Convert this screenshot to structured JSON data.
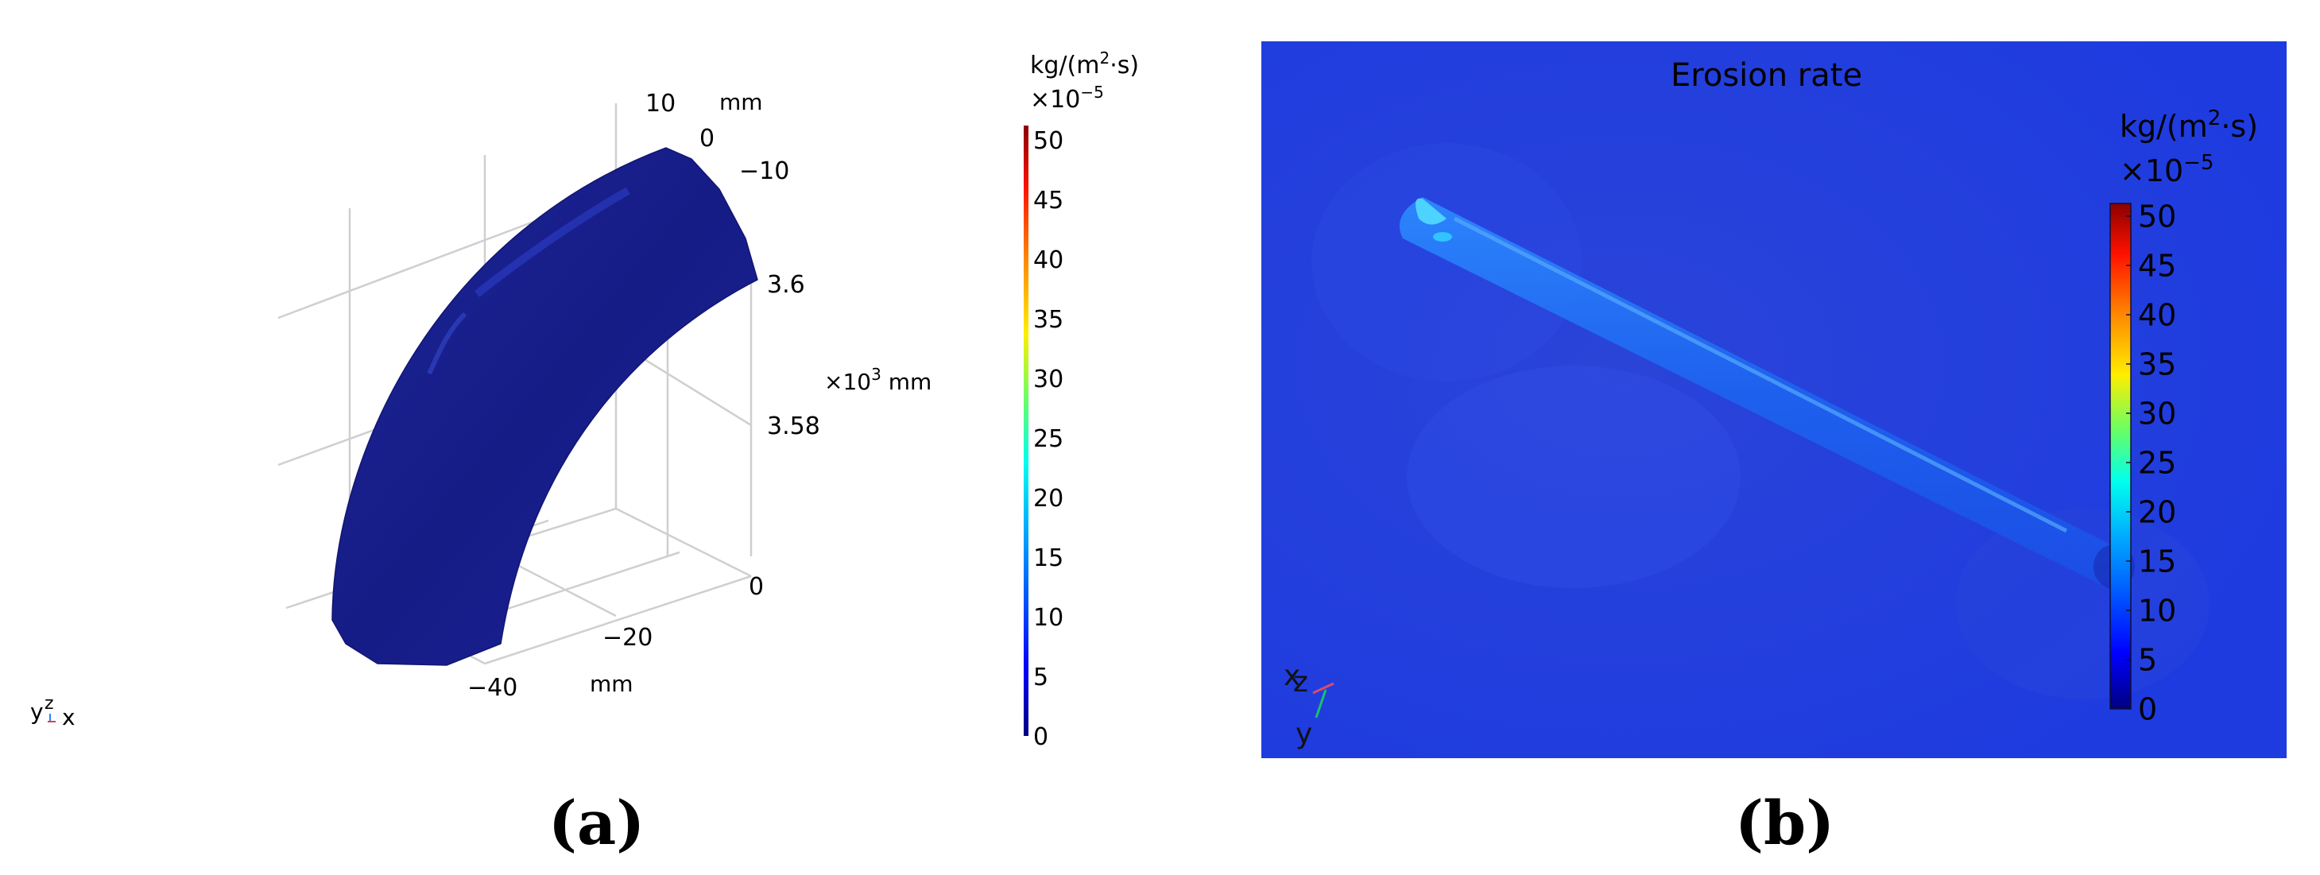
{
  "panel_a": {
    "unit_mm_top": "mm",
    "y_ticks": [
      "10",
      "0",
      "−10"
    ],
    "z_ticks": [
      "3.6",
      "3.58"
    ],
    "z_unit_prefix": "×10",
    "z_unit_exp": "3",
    "z_unit_suffix": " mm",
    "x_ticks": [
      "0",
      "−20",
      "−40"
    ],
    "unit_mm_bottom": "mm",
    "triad": {
      "y": "y",
      "z": "z",
      "x": "x"
    },
    "colorbar": {
      "unit_prefix": "kg/(m",
      "unit_exp": "2",
      "unit_suffix": "·s)",
      "scale_prefix": "×10",
      "scale_exp": "−5",
      "ticks": [
        "50",
        "45",
        "40",
        "35",
        "30",
        "25",
        "20",
        "15",
        "10",
        "5",
        "0"
      ]
    },
    "caption": "(a)"
  },
  "panel_b": {
    "title": "Erosion rate",
    "colorbar": {
      "unit_prefix": "kg/(m",
      "unit_exp": "2",
      "unit_suffix": "·s)",
      "scale_prefix": "×10",
      "scale_exp": "−5",
      "ticks": [
        "50",
        "45",
        "40",
        "35",
        "30",
        "25",
        "20",
        "15",
        "10",
        "5",
        "0"
      ]
    },
    "triad": {
      "x": "x",
      "z": "z",
      "y": "y"
    },
    "caption": "(b)"
  },
  "colors": {
    "field_background": "#1f3cdc",
    "pipe_body": "#1a1f9a",
    "grid_line": "#cfcfcf",
    "colormap": [
      "#00007f",
      "#0000ff",
      "#007fff",
      "#00ffff",
      "#7fff7f",
      "#ffff00",
      "#ff7f00",
      "#ff0000",
      "#7f0000"
    ]
  }
}
